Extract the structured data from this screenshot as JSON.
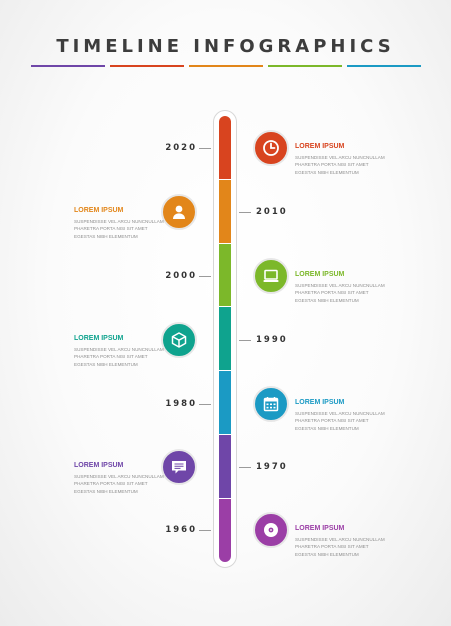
{
  "title": "TIMELINE INFOGRAPHICS",
  "colors": {
    "red": "#d8441f",
    "orange": "#e2861a",
    "green": "#7cb82a",
    "teal": "#0fa38e",
    "blue": "#1b9ac4",
    "purple": "#6f46a8",
    "magenta": "#9b3ea6"
  },
  "segments": [
    "red",
    "orange",
    "green",
    "teal",
    "blue",
    "purple",
    "magenta"
  ],
  "underline": [
    "purple",
    "red",
    "orange",
    "green",
    "blue"
  ],
  "items": [
    {
      "year": "2020",
      "heading": "LOREM IPSUM",
      "lines": [
        "SUSPENDISSE VEL ARCU NUNCNULLAM",
        "PHARETRA PORTA NISI SIT AMET",
        "EGESTAS NIBH ELEMENTUM"
      ],
      "icon": "clock-icon",
      "color": "red"
    },
    {
      "year": "2010",
      "heading": "LOREM IPSUM",
      "lines": [
        "SUSPENDISSE VEL ARCU NUNCNULLAM",
        "PHARETRA PORTA NISI SIT AMET",
        "EGESTAS NIBH ELEMENTUM"
      ],
      "icon": "user-icon",
      "color": "orange"
    },
    {
      "year": "2000",
      "heading": "LOREM IPSUM",
      "lines": [
        "SUSPENDISSE VEL ARCU NUNCNULLAM",
        "PHARETRA PORTA NISI SIT AMET",
        "EGESTAS NIBH ELEMENTUM"
      ],
      "icon": "computer-icon",
      "color": "green"
    },
    {
      "year": "1990",
      "heading": "LOREM IPSUM",
      "lines": [
        "SUSPENDISSE VEL ARCU NUNCNULLAM",
        "PHARETRA PORTA NISI SIT AMET",
        "EGESTAS NIBH ELEMENTUM"
      ],
      "icon": "cube-icon",
      "color": "teal"
    },
    {
      "year": "1980",
      "heading": "LOREM IPSUM",
      "lines": [
        "SUSPENDISSE VEL ARCU NUNCNULLAM",
        "PHARETRA PORTA NISI SIT AMET",
        "EGESTAS NIBH ELEMENTUM"
      ],
      "icon": "calendar-icon",
      "color": "blue"
    },
    {
      "year": "1970",
      "heading": "LOREM IPSUM",
      "lines": [
        "SUSPENDISSE VEL ARCU NUNCNULLAM",
        "PHARETRA PORTA NISI SIT AMET",
        "EGESTAS NIBH ELEMENTUM"
      ],
      "icon": "chat-icon",
      "color": "purple"
    },
    {
      "year": "1960",
      "heading": "LOREM IPSUM",
      "lines": [
        "SUSPENDISSE VEL ARCU NUNCNULLAM",
        "PHARETRA PORTA NISI SIT AMET",
        "EGESTAS NIBH ELEMENTUM"
      ],
      "icon": "disc-icon",
      "color": "magenta"
    }
  ]
}
